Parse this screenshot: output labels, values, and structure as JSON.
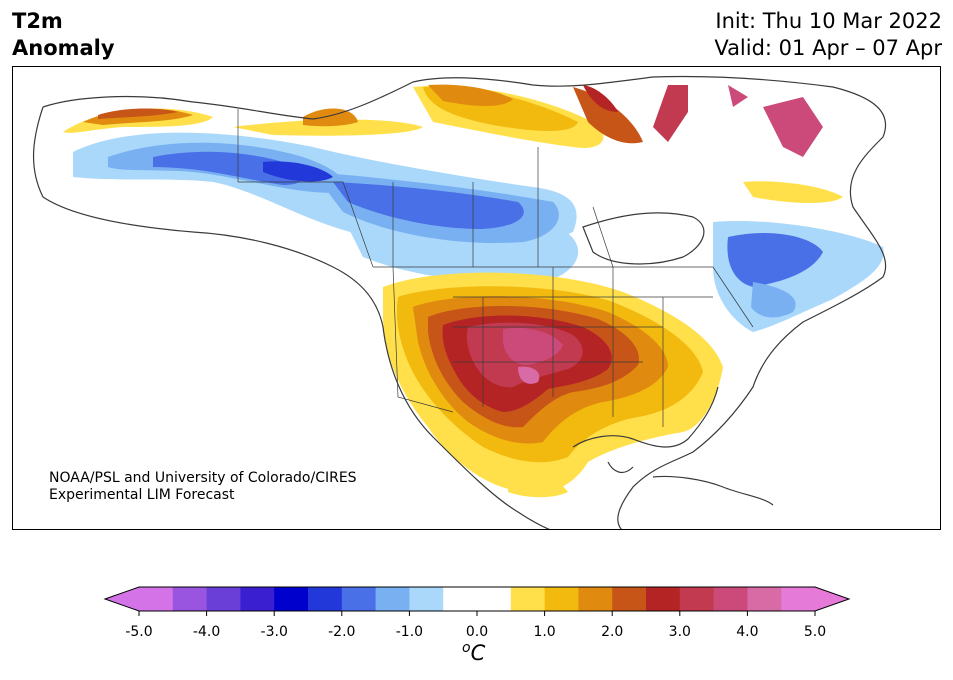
{
  "title": {
    "left_line1": "T2m",
    "left_line2": "Anomaly",
    "init": "Init: Thu 10 Mar 2022",
    "valid": "Valid: 01 Apr – 07 Apr"
  },
  "credit": {
    "line1": "NOAA/PSL and University of Colorado/CIRES",
    "line2": "Experimental LIM Forecast"
  },
  "colorbar": {
    "units_base": "C",
    "units_sup": "o",
    "tick_labels": [
      "-5.0",
      "-4.0",
      "-3.0",
      "-2.0",
      "-1.0",
      "0.0",
      "1.0",
      "2.0",
      "3.0",
      "4.0",
      "5.0"
    ],
    "tick_values": [
      -5,
      -4,
      -3,
      -2,
      -1,
      0,
      1,
      2,
      3,
      4,
      5
    ],
    "min": -5,
    "max": 5,
    "step": 0.5,
    "under_color": "#d473e8",
    "over_color": "#e57ad8",
    "colors": [
      "#d473e8",
      "#9a55e0",
      "#6a3fd8",
      "#3a1fd0",
      "#0000cc",
      "#2238d8",
      "#4a70e8",
      "#78b0f2",
      "#aad8fb",
      "#ffffff",
      "#ffffff",
      "#ffe04a",
      "#f2b90e",
      "#e08b10",
      "#c75518",
      "#b52424",
      "#c23a50",
      "#cc4a7a",
      "#d86aa6",
      "#e57ad8"
    ]
  }
}
